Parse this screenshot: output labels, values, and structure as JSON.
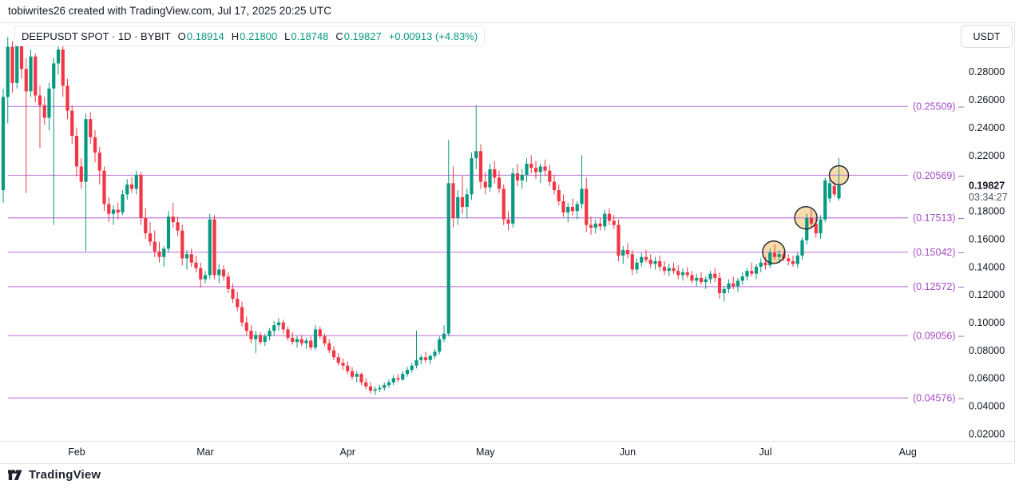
{
  "header": {
    "attribution": "tobiwrites26 created with TradingView.com, Jul 17, 2025 20:25 UTC"
  },
  "legend": {
    "title": "DEEPUSDT SPOT · 1D · BYBIT",
    "ohlc": [
      {
        "k": "O",
        "v": "0.18914"
      },
      {
        "k": "H",
        "v": "0.21800"
      },
      {
        "k": "L",
        "v": "0.18748"
      },
      {
        "k": "C",
        "v": "0.19827"
      }
    ],
    "change": "+0.00913 (+4.83%)"
  },
  "price_axis": {
    "currency_button": "USDT",
    "ticks": [
      "0.28000",
      "0.26000",
      "0.24000",
      "0.22000",
      "0.18000",
      "0.16000",
      "0.14000",
      "0.12000",
      "0.10000",
      "0.08000",
      "0.06000",
      "0.04000",
      "0.02000"
    ],
    "current_price": "0.19827",
    "countdown": "03:34:27"
  },
  "time_axis": {
    "months": [
      "Feb",
      "Mar",
      "Apr",
      "May",
      "Jun",
      "Jul",
      "Aug"
    ]
  },
  "footer": {
    "brand": "TradingView"
  },
  "colors": {
    "up": "#089981",
    "down": "#f23645",
    "level_line": "#c37fdb",
    "level_label": "#a64dc6",
    "circle_fill": "#f6dca8",
    "circle_stroke": "#2a2e39",
    "text": "#131722",
    "muted": "#50535e",
    "border": "#e0e3eb"
  },
  "chart_data": {
    "type": "candlestick",
    "symbol": "DEEPUSDT",
    "market": "SPOT",
    "interval": "1D",
    "exchange": "BYBIT",
    "title": "DEEPUSDT SPOT · 1D · BYBIT",
    "grid": false,
    "y_axis": {
      "visible_min": 0.015,
      "visible_max": 0.3155,
      "tick_step": 0.02
    },
    "x_axis": {
      "first_candle_date": "Jan 16",
      "last_candle_date": "Jul 17",
      "month_start_indices": [
        16,
        44,
        75,
        105,
        136,
        166,
        197
      ]
    },
    "last_bar": {
      "open": 0.18914,
      "high": 0.218,
      "low": 0.18748,
      "close": 0.19827,
      "change": "+0.00913 (+4.83%)"
    },
    "levels": [
      {
        "price": 0.25509,
        "label": "(0.25509) –"
      },
      {
        "price": 0.20569,
        "label": "(0.20569) –"
      },
      {
        "price": 0.17513,
        "label": "(0.17513) –"
      },
      {
        "price": 0.15042,
        "label": "(0.15042) –"
      },
      {
        "price": 0.12572,
        "label": "(0.12572) –"
      },
      {
        "price": 0.09056,
        "label": "(0.09056) –"
      },
      {
        "price": 0.04576,
        "label": "(0.04576) –"
      }
    ],
    "circles": [
      {
        "price": 0.15042,
        "candle_index": 167.8,
        "radius_px": 14
      },
      {
        "price": 0.17513,
        "candle_index": 174.8,
        "radius_px": 14
      },
      {
        "price": 0.20569,
        "candle_index": 182,
        "radius_px": 12
      }
    ],
    "candles": [
      [
        0.195,
        0.268,
        0.186,
        0.262
      ],
      [
        0.262,
        0.305,
        0.243,
        0.298
      ],
      [
        0.298,
        0.302,
        0.265,
        0.272
      ],
      [
        0.272,
        0.312,
        0.268,
        0.305
      ],
      [
        0.305,
        0.308,
        0.275,
        0.282
      ],
      [
        0.282,
        0.29,
        0.193,
        0.266
      ],
      [
        0.266,
        0.296,
        0.262,
        0.291
      ],
      [
        0.291,
        0.293,
        0.258,
        0.263
      ],
      [
        0.263,
        0.27,
        0.225,
        0.256
      ],
      [
        0.256,
        0.262,
        0.242,
        0.247
      ],
      [
        0.247,
        0.272,
        0.238,
        0.268
      ],
      [
        0.268,
        0.29,
        0.17,
        0.286
      ],
      [
        0.286,
        0.306,
        0.278,
        0.296
      ],
      [
        0.296,
        0.299,
        0.262,
        0.27
      ],
      [
        0.27,
        0.275,
        0.246,
        0.252
      ],
      [
        0.252,
        0.256,
        0.228,
        0.234
      ],
      [
        0.234,
        0.24,
        0.205,
        0.212
      ],
      [
        0.212,
        0.218,
        0.196,
        0.201
      ],
      [
        0.201,
        0.25,
        0.151,
        0.246
      ],
      [
        0.246,
        0.251,
        0.228,
        0.233
      ],
      [
        0.233,
        0.238,
        0.215,
        0.222
      ],
      [
        0.222,
        0.226,
        0.199,
        0.209
      ],
      [
        0.209,
        0.212,
        0.18,
        0.185
      ],
      [
        0.185,
        0.19,
        0.172,
        0.178
      ],
      [
        0.178,
        0.184,
        0.17,
        0.181
      ],
      [
        0.181,
        0.186,
        0.174,
        0.179
      ],
      [
        0.179,
        0.195,
        0.177,
        0.192
      ],
      [
        0.192,
        0.203,
        0.188,
        0.199
      ],
      [
        0.199,
        0.204,
        0.193,
        0.196
      ],
      [
        0.196,
        0.209,
        0.192,
        0.206
      ],
      [
        0.206,
        0.208,
        0.17,
        0.175
      ],
      [
        0.175,
        0.182,
        0.16,
        0.164
      ],
      [
        0.164,
        0.172,
        0.155,
        0.158
      ],
      [
        0.158,
        0.166,
        0.147,
        0.151
      ],
      [
        0.151,
        0.158,
        0.143,
        0.147
      ],
      [
        0.147,
        0.155,
        0.14,
        0.153
      ],
      [
        0.153,
        0.18,
        0.15,
        0.176
      ],
      [
        0.176,
        0.186,
        0.168,
        0.172
      ],
      [
        0.172,
        0.176,
        0.162,
        0.166
      ],
      [
        0.166,
        0.17,
        0.141,
        0.146
      ],
      [
        0.146,
        0.152,
        0.138,
        0.149
      ],
      [
        0.149,
        0.153,
        0.14,
        0.143
      ],
      [
        0.143,
        0.148,
        0.136,
        0.139
      ],
      [
        0.139,
        0.143,
        0.125,
        0.131
      ],
      [
        0.131,
        0.137,
        0.128,
        0.134
      ],
      [
        0.134,
        0.178,
        0.131,
        0.174
      ],
      [
        0.174,
        0.177,
        0.131,
        0.134
      ],
      [
        0.134,
        0.142,
        0.128,
        0.138
      ],
      [
        0.138,
        0.141,
        0.13,
        0.133
      ],
      [
        0.133,
        0.136,
        0.121,
        0.124
      ],
      [
        0.124,
        0.128,
        0.114,
        0.117
      ],
      [
        0.117,
        0.122,
        0.108,
        0.111
      ],
      [
        0.111,
        0.115,
        0.097,
        0.1
      ],
      [
        0.1,
        0.104,
        0.091,
        0.094
      ],
      [
        0.094,
        0.098,
        0.085,
        0.088
      ],
      [
        0.088,
        0.094,
        0.078,
        0.091
      ],
      [
        0.091,
        0.093,
        0.084,
        0.086
      ],
      [
        0.086,
        0.092,
        0.083,
        0.09
      ],
      [
        0.09,
        0.096,
        0.087,
        0.094
      ],
      [
        0.094,
        0.101,
        0.091,
        0.098
      ],
      [
        0.098,
        0.103,
        0.094,
        0.1
      ],
      [
        0.1,
        0.102,
        0.092,
        0.095
      ],
      [
        0.095,
        0.097,
        0.087,
        0.089
      ],
      [
        0.089,
        0.093,
        0.084,
        0.086
      ],
      [
        0.086,
        0.09,
        0.082,
        0.088
      ],
      [
        0.088,
        0.091,
        0.083,
        0.085
      ],
      [
        0.085,
        0.089,
        0.081,
        0.087
      ],
      [
        0.087,
        0.09,
        0.08,
        0.082
      ],
      [
        0.082,
        0.098,
        0.08,
        0.095
      ],
      [
        0.095,
        0.097,
        0.088,
        0.09
      ],
      [
        0.09,
        0.092,
        0.083,
        0.085
      ],
      [
        0.085,
        0.088,
        0.078,
        0.08
      ],
      [
        0.08,
        0.083,
        0.073,
        0.075
      ],
      [
        0.075,
        0.078,
        0.069,
        0.071
      ],
      [
        0.071,
        0.074,
        0.066,
        0.069
      ],
      [
        0.069,
        0.072,
        0.063,
        0.065
      ],
      [
        0.065,
        0.068,
        0.059,
        0.061
      ],
      [
        0.061,
        0.065,
        0.057,
        0.063
      ],
      [
        0.063,
        0.064,
        0.055,
        0.057
      ],
      [
        0.057,
        0.06,
        0.052,
        0.054
      ],
      [
        0.054,
        0.057,
        0.049,
        0.051
      ],
      [
        0.051,
        0.054,
        0.048,
        0.052
      ],
      [
        0.052,
        0.055,
        0.05,
        0.053
      ],
      [
        0.053,
        0.057,
        0.051,
        0.055
      ],
      [
        0.055,
        0.059,
        0.053,
        0.057
      ],
      [
        0.057,
        0.062,
        0.055,
        0.06
      ],
      [
        0.06,
        0.063,
        0.057,
        0.059
      ],
      [
        0.059,
        0.065,
        0.058,
        0.063
      ],
      [
        0.063,
        0.068,
        0.061,
        0.066
      ],
      [
        0.066,
        0.071,
        0.064,
        0.069
      ],
      [
        0.069,
        0.094,
        0.067,
        0.073
      ],
      [
        0.073,
        0.077,
        0.07,
        0.075
      ],
      [
        0.075,
        0.079,
        0.071,
        0.073
      ],
      [
        0.073,
        0.077,
        0.07,
        0.076
      ],
      [
        0.076,
        0.081,
        0.074,
        0.079
      ],
      [
        0.079,
        0.09,
        0.077,
        0.088
      ],
      [
        0.088,
        0.098,
        0.086,
        0.092
      ],
      [
        0.092,
        0.231,
        0.09,
        0.2
      ],
      [
        0.2,
        0.212,
        0.168,
        0.175
      ],
      [
        0.175,
        0.195,
        0.17,
        0.19
      ],
      [
        0.19,
        0.205,
        0.178,
        0.183
      ],
      [
        0.183,
        0.196,
        0.175,
        0.192
      ],
      [
        0.192,
        0.222,
        0.188,
        0.218
      ],
      [
        0.218,
        0.256,
        0.21,
        0.223
      ],
      [
        0.223,
        0.228,
        0.196,
        0.201
      ],
      [
        0.201,
        0.208,
        0.192,
        0.197
      ],
      [
        0.197,
        0.214,
        0.194,
        0.21
      ],
      [
        0.21,
        0.216,
        0.2,
        0.204
      ],
      [
        0.204,
        0.209,
        0.193,
        0.196
      ],
      [
        0.196,
        0.199,
        0.17,
        0.174
      ],
      [
        0.174,
        0.18,
        0.166,
        0.171
      ],
      [
        0.171,
        0.211,
        0.168,
        0.207
      ],
      [
        0.207,
        0.214,
        0.198,
        0.202
      ],
      [
        0.202,
        0.21,
        0.196,
        0.206
      ],
      [
        0.206,
        0.218,
        0.201,
        0.214
      ],
      [
        0.214,
        0.22,
        0.207,
        0.211
      ],
      [
        0.211,
        0.216,
        0.203,
        0.208
      ],
      [
        0.208,
        0.214,
        0.2,
        0.212
      ],
      [
        0.212,
        0.217,
        0.205,
        0.209
      ],
      [
        0.209,
        0.213,
        0.198,
        0.201
      ],
      [
        0.201,
        0.206,
        0.192,
        0.195
      ],
      [
        0.195,
        0.199,
        0.184,
        0.187
      ],
      [
        0.187,
        0.192,
        0.176,
        0.179
      ],
      [
        0.179,
        0.186,
        0.172,
        0.183
      ],
      [
        0.183,
        0.189,
        0.177,
        0.18
      ],
      [
        0.18,
        0.187,
        0.174,
        0.185
      ],
      [
        0.185,
        0.22,
        0.182,
        0.196
      ],
      [
        0.196,
        0.204,
        0.165,
        0.17
      ],
      [
        0.17,
        0.176,
        0.163,
        0.168
      ],
      [
        0.168,
        0.174,
        0.164,
        0.171
      ],
      [
        0.171,
        0.175,
        0.166,
        0.169
      ],
      [
        0.169,
        0.181,
        0.166,
        0.178
      ],
      [
        0.178,
        0.182,
        0.17,
        0.173
      ],
      [
        0.173,
        0.177,
        0.167,
        0.17
      ],
      [
        0.17,
        0.174,
        0.144,
        0.148
      ],
      [
        0.148,
        0.155,
        0.142,
        0.152
      ],
      [
        0.152,
        0.157,
        0.146,
        0.149
      ],
      [
        0.149,
        0.152,
        0.134,
        0.138
      ],
      [
        0.138,
        0.146,
        0.135,
        0.143
      ],
      [
        0.143,
        0.15,
        0.14,
        0.147
      ],
      [
        0.147,
        0.152,
        0.143,
        0.145
      ],
      [
        0.145,
        0.149,
        0.139,
        0.142
      ],
      [
        0.142,
        0.147,
        0.138,
        0.144
      ],
      [
        0.144,
        0.148,
        0.137,
        0.14
      ],
      [
        0.14,
        0.144,
        0.134,
        0.137
      ],
      [
        0.137,
        0.142,
        0.133,
        0.139
      ],
      [
        0.139,
        0.143,
        0.135,
        0.137
      ],
      [
        0.137,
        0.141,
        0.131,
        0.134
      ],
      [
        0.134,
        0.139,
        0.13,
        0.136
      ],
      [
        0.136,
        0.14,
        0.132,
        0.134
      ],
      [
        0.134,
        0.137,
        0.128,
        0.13
      ],
      [
        0.13,
        0.135,
        0.126,
        0.132
      ],
      [
        0.132,
        0.136,
        0.127,
        0.129
      ],
      [
        0.129,
        0.133,
        0.124,
        0.131
      ],
      [
        0.131,
        0.137,
        0.128,
        0.135
      ],
      [
        0.135,
        0.139,
        0.129,
        0.132
      ],
      [
        0.132,
        0.136,
        0.117,
        0.121
      ],
      [
        0.121,
        0.126,
        0.115,
        0.124
      ],
      [
        0.124,
        0.131,
        0.121,
        0.128
      ],
      [
        0.128,
        0.133,
        0.124,
        0.126
      ],
      [
        0.126,
        0.132,
        0.122,
        0.13
      ],
      [
        0.13,
        0.136,
        0.127,
        0.133
      ],
      [
        0.133,
        0.139,
        0.13,
        0.137
      ],
      [
        0.137,
        0.143,
        0.133,
        0.135
      ],
      [
        0.135,
        0.142,
        0.131,
        0.14
      ],
      [
        0.14,
        0.146,
        0.136,
        0.143
      ],
      [
        0.143,
        0.147,
        0.138,
        0.141
      ],
      [
        0.141,
        0.153,
        0.139,
        0.15
      ],
      [
        0.15,
        0.156,
        0.145,
        0.147
      ],
      [
        0.147,
        0.152,
        0.143,
        0.149
      ],
      [
        0.149,
        0.151,
        0.144,
        0.146
      ],
      [
        0.146,
        0.149,
        0.141,
        0.144
      ],
      [
        0.144,
        0.148,
        0.14,
        0.142
      ],
      [
        0.142,
        0.15,
        0.139,
        0.148
      ],
      [
        0.148,
        0.161,
        0.145,
        0.159
      ],
      [
        0.159,
        0.178,
        0.156,
        0.175
      ],
      [
        0.175,
        0.181,
        0.168,
        0.171
      ],
      [
        0.171,
        0.175,
        0.161,
        0.164
      ],
      [
        0.164,
        0.177,
        0.16,
        0.174
      ],
      [
        0.174,
        0.204,
        0.172,
        0.202
      ],
      [
        0.189,
        0.203,
        0.186,
        0.2
      ],
      [
        0.198,
        0.201,
        0.19,
        0.192
      ],
      [
        0.18914,
        0.218,
        0.18748,
        0.19827
      ]
    ]
  }
}
